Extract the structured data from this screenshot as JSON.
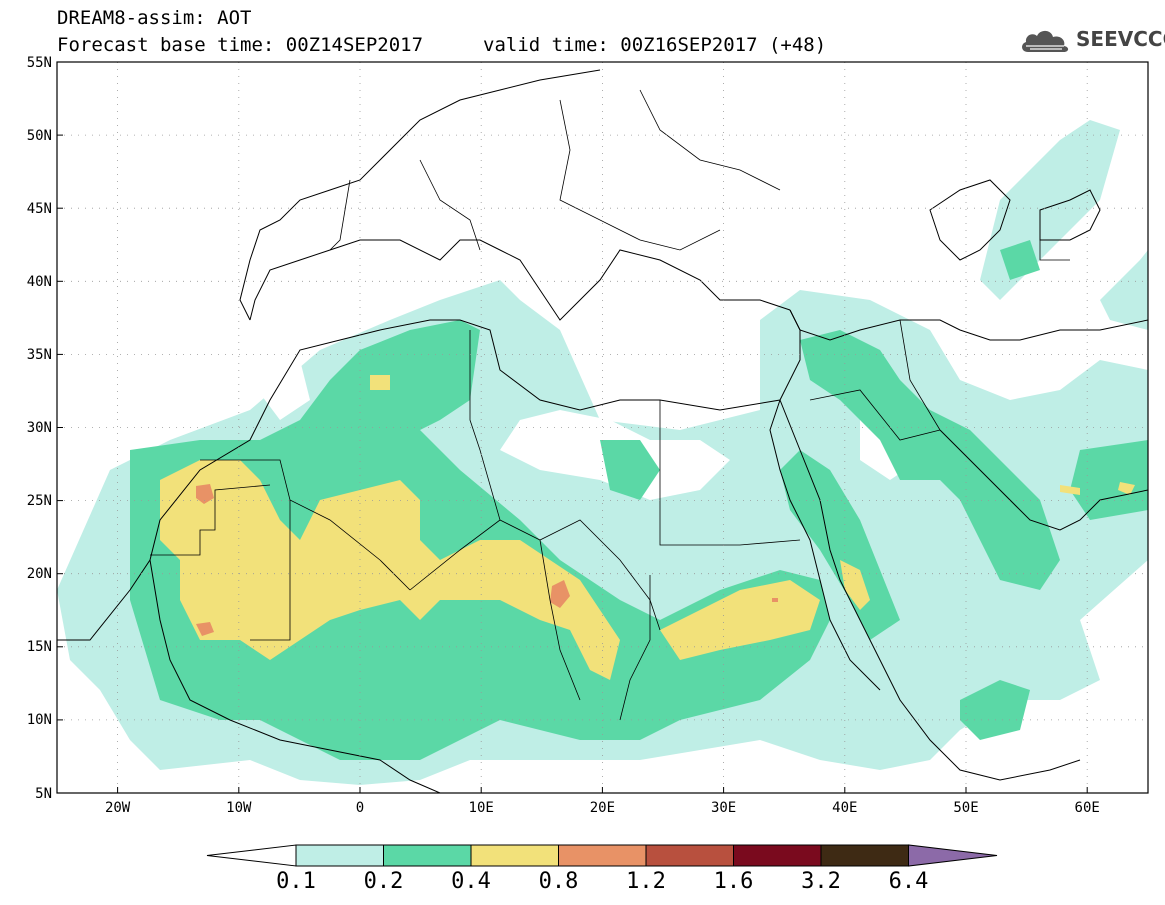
{
  "title": {
    "line1": "DREAM8-assim: AOT",
    "line2": "Forecast base time: 00Z14SEP2017",
    "valid": "valid time: 00Z16SEP2017 (+48)"
  },
  "logo": {
    "text": "SEEVCCC",
    "icon": "cloud-icon"
  },
  "map": {
    "type": "filled-contour-map",
    "lon_range": [
      -25,
      65
    ],
    "lat_range": [
      5,
      55
    ],
    "grid": true,
    "lat_labels": [
      "55N",
      "50N",
      "45N",
      "40N",
      "35N",
      "30N",
      "25N",
      "20N",
      "15N",
      "10N",
      "5N"
    ],
    "lon_labels": [
      "20W",
      "10W",
      "0",
      "10E",
      "20E",
      "30E",
      "40E",
      "50E",
      "60E"
    ]
  },
  "colorbar": {
    "levels": [
      "0.1",
      "0.2",
      "0.4",
      "0.8",
      "1.2",
      "1.6",
      "3.2",
      "6.4"
    ],
    "colors": [
      "#ffffff",
      "#bfeee6",
      "#5bd8a6",
      "#f2e17a",
      "#e89266",
      "#b8503e",
      "#7a0a1e",
      "#3e2a14",
      "#8c6aa8"
    ]
  }
}
